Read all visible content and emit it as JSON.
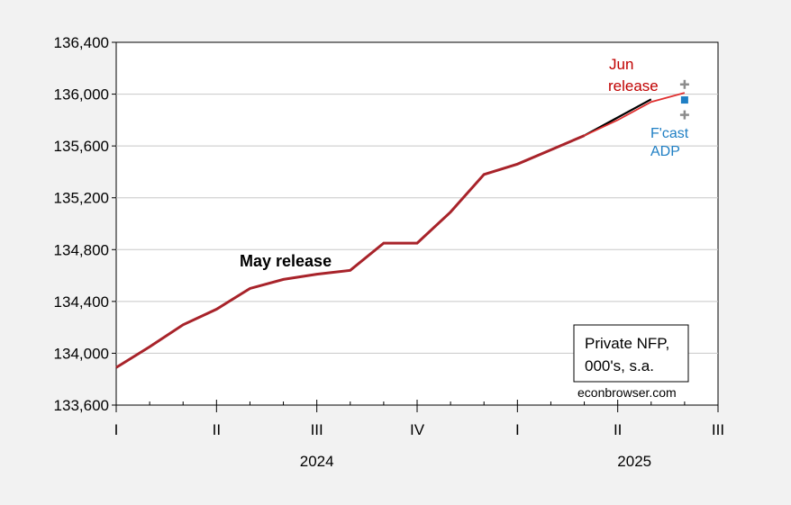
{
  "chart_data": {
    "type": "line",
    "y_axis": {
      "ticks": [
        133600,
        134000,
        134400,
        134800,
        135200,
        135600,
        136000,
        136400
      ],
      "tick_labels": [
        "133,600",
        "134,000",
        "134,400",
        "134,800",
        "135,200",
        "135,600",
        "136,000",
        "136,400"
      ],
      "ylim": [
        133600,
        136400
      ],
      "grid": true
    },
    "x_axis": {
      "month_index_range": [
        0,
        18
      ],
      "quarter_ticks": [
        {
          "m": 0,
          "label": "I"
        },
        {
          "m": 3,
          "label": "II"
        },
        {
          "m": 6,
          "label": "III"
        },
        {
          "m": 9,
          "label": "IV"
        },
        {
          "m": 12,
          "label": "I"
        },
        {
          "m": 15,
          "label": "II"
        },
        {
          "m": 18,
          "label": "III"
        }
      ],
      "year_labels": [
        {
          "m": 6,
          "label": "2024"
        },
        {
          "m": 15.5,
          "label": "2025"
        }
      ]
    },
    "series": [
      {
        "name": "May release",
        "color": "#000000",
        "x": [
          0,
          1,
          2,
          3,
          4,
          5,
          6,
          7,
          8,
          9,
          10,
          11,
          12,
          13,
          14,
          15,
          16
        ],
        "values": [
          133890,
          134050,
          134220,
          134340,
          134500,
          134570,
          134610,
          134640,
          134850,
          134850,
          135090,
          135380,
          135460,
          135570,
          135680,
          135820,
          135960
        ]
      },
      {
        "name": "Jun release",
        "color": "#e03030",
        "x": [
          0,
          1,
          2,
          3,
          4,
          5,
          6,
          7,
          8,
          9,
          10,
          11,
          12,
          13,
          14,
          15,
          16,
          17
        ],
        "values": [
          133890,
          134050,
          134220,
          134340,
          134500,
          134570,
          134610,
          134640,
          134850,
          134850,
          135090,
          135380,
          135460,
          135570,
          135680,
          135800,
          135940,
          136010
        ]
      },
      {
        "name": "F'cast",
        "color": "#8c8c8c",
        "marker": "plus",
        "x": [
          17,
          17
        ],
        "values": [
          136075,
          135840
        ]
      },
      {
        "name": "ADP",
        "color": "#1f7fc4",
        "marker": "square",
        "x": [
          17
        ],
        "values": [
          135955
        ]
      }
    ],
    "annotations": {
      "may_release": "May release",
      "jun_release_line1": "Jun",
      "jun_release_line2": "release",
      "fcast": "F'cast",
      "adp": "ADP",
      "legend_box_line1": "Private NFP,",
      "legend_box_line2": "000's, s.a.",
      "source": "econbrowser.com"
    },
    "colors": {
      "common_history": "#a8232a",
      "may_release_text": "#000000",
      "jun_release_text": "#c00000",
      "fcast_text": "#8c8c8c",
      "adp_text": "#1f7fc4"
    }
  }
}
